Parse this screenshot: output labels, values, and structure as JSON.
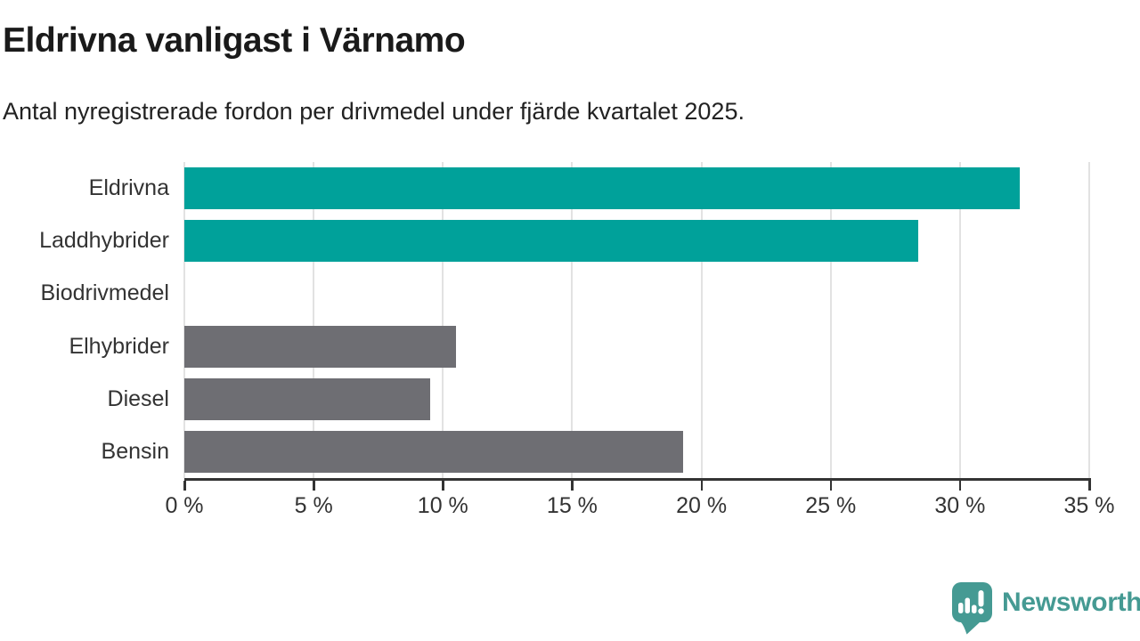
{
  "header": {
    "title": "Eldrivna vanligast i Värnamo",
    "subtitle": "Antal nyregistrerade fordon per drivmedel under fjärde kvartalet 2025."
  },
  "chart_data": {
    "type": "bar",
    "orientation": "horizontal",
    "title": "Eldrivna vanligast i Värnamo",
    "subtitle": "Antal nyregistrerade fordon per drivmedel under fjärde kvartalet 2025.",
    "categories": [
      "Eldrivna",
      "Laddhybrider",
      "Biodrivmedel",
      "Elhybrider",
      "Diesel",
      "Bensin"
    ],
    "values": [
      32.3,
      28.4,
      0,
      10.5,
      9.5,
      19.3
    ],
    "unit": "%",
    "bar_colors": [
      "#00a19a",
      "#00a19a",
      "#6e6e73",
      "#6e6e73",
      "#6e6e73",
      "#6e6e73"
    ],
    "highlight_color": "#00a19a",
    "default_color": "#6e6e73",
    "xlim": [
      0,
      35
    ],
    "x_ticks": [
      0,
      5,
      10,
      15,
      20,
      25,
      30,
      35
    ],
    "x_tick_suffix": " %",
    "grid": true,
    "gridline_color": "#e2e2e2",
    "axis_color": "#333333",
    "legend": "none"
  },
  "footer": {
    "brand": "Newsworthy",
    "brand_color": "#459a93"
  }
}
